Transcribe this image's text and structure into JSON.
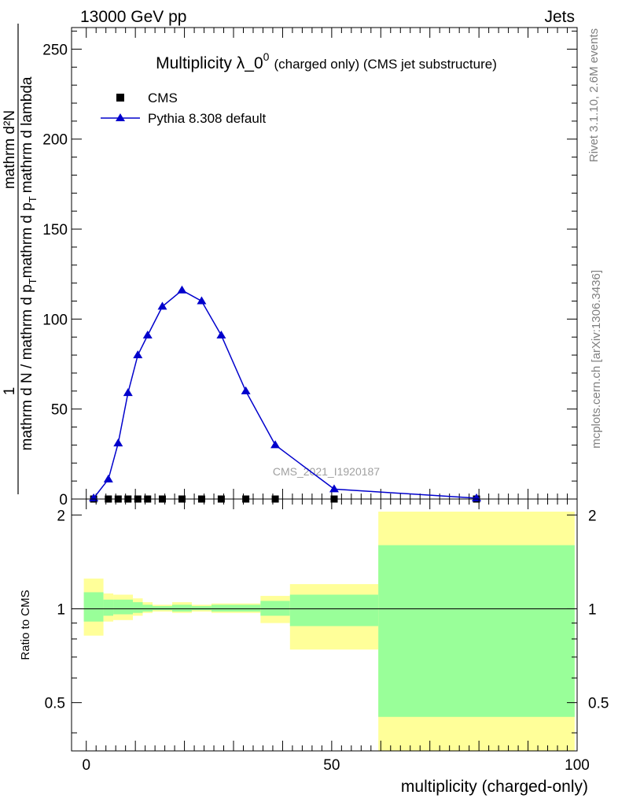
{
  "header": {
    "energy_label": "13000 GeV pp",
    "process_label": "Jets"
  },
  "side_labels": {
    "rivet": "Rivet 3.1.10,  2.6M events",
    "mcplots": "mcplots.cern.ch [arXiv:1306.3436]"
  },
  "watermark": "CMS_2021_I1920187",
  "chart_data": [
    {
      "type": "line",
      "title_main": "Multiplicity λ_0",
      "title_sup": "0",
      "title_rest": "(charged only) (CMS jet substructure)",
      "ylabel_numerator": "mathrm d²N",
      "ylabel_numerator_one": "1",
      "ylabel_denominator": "mathrm d N / mathrm d p",
      "ylabel_denominator_rest": "mathrm d p",
      "ylabel_denominator_end": "mathrm d lambda",
      "ylabel_sub": "T",
      "ylim": [
        0,
        262
      ],
      "xlim": [
        -3,
        100
      ],
      "yticks": [
        0,
        50,
        100,
        150,
        200,
        250
      ],
      "legend_position": "top-left",
      "series": [
        {
          "name": "CMS",
          "marker": "square",
          "color": "#000000",
          "x": [
            1.5,
            4.5,
            6.5,
            8.5,
            10.5,
            12.5,
            15.5,
            19.5,
            23.5,
            27.5,
            32.5,
            38.5,
            50.5,
            79.5
          ],
          "y": [
            0,
            0,
            0,
            0,
            0,
            0,
            0,
            0,
            0,
            0,
            0,
            0,
            0,
            0
          ]
        },
        {
          "name": "Pythia 8.308 default",
          "marker": "triangle",
          "color": "#0000cc",
          "x": [
            1.5,
            4.5,
            6.5,
            8.5,
            10.5,
            12.5,
            15.5,
            19.5,
            23.5,
            27.5,
            32.5,
            38.5,
            50.5,
            79.5
          ],
          "y": [
            0.5,
            11,
            31,
            59,
            80,
            91,
            107,
            116,
            110,
            91,
            60,
            30,
            5.5,
            0.5
          ]
        }
      ]
    },
    {
      "type": "area",
      "ylabel": "Ratio to CMS",
      "xlabel": "multiplicity (charged-only)",
      "ylim": [
        0.35,
        2.25
      ],
      "xlim": [
        -3,
        100
      ],
      "xticks": [
        0,
        50,
        100
      ],
      "ytick_labels": [
        {
          "value": 0.5,
          "label": "0.5"
        },
        {
          "value": 1,
          "label": "1"
        },
        {
          "value": 2,
          "label": "2"
        }
      ],
      "bands": [
        {
          "x0": -0.5,
          "x1": 3.5,
          "green": [
            0.91,
            1.13
          ],
          "yellow": [
            0.82,
            1.25
          ]
        },
        {
          "x0": 3.5,
          "x1": 5.5,
          "green": [
            0.95,
            1.07
          ],
          "yellow": [
            0.91,
            1.12
          ]
        },
        {
          "x0": 5.5,
          "x1": 9.5,
          "green": [
            0.96,
            1.07
          ],
          "yellow": [
            0.92,
            1.11
          ]
        },
        {
          "x0": 9.5,
          "x1": 11.5,
          "green": [
            0.97,
            1.05
          ],
          "yellow": [
            0.95,
            1.08
          ]
        },
        {
          "x0": 11.5,
          "x1": 13.5,
          "green": [
            0.98,
            1.03
          ],
          "yellow": [
            0.97,
            1.05
          ]
        },
        {
          "x0": 13.5,
          "x1": 17.5,
          "green": [
            0.99,
            1.02
          ],
          "yellow": [
            0.98,
            1.03
          ]
        },
        {
          "x0": 17.5,
          "x1": 21.5,
          "green": [
            0.98,
            1.03
          ],
          "yellow": [
            0.97,
            1.05
          ]
        },
        {
          "x0": 21.5,
          "x1": 25.5,
          "green": [
            0.99,
            1.02
          ],
          "yellow": [
            0.98,
            1.03
          ]
        },
        {
          "x0": 25.5,
          "x1": 35.5,
          "green": [
            0.98,
            1.03
          ],
          "yellow": [
            0.97,
            1.04
          ]
        },
        {
          "x0": 35.5,
          "x1": 41.5,
          "green": [
            0.95,
            1.06
          ],
          "yellow": [
            0.9,
            1.1
          ]
        },
        {
          "x0": 41.5,
          "x1": 59.5,
          "green": [
            0.88,
            1.11
          ],
          "yellow": [
            0.74,
            1.2
          ]
        },
        {
          "x0": 59.5,
          "x1": 99.5,
          "green": [
            0.45,
            1.6
          ],
          "yellow": [
            0.35,
            2.05
          ]
        }
      ]
    }
  ]
}
